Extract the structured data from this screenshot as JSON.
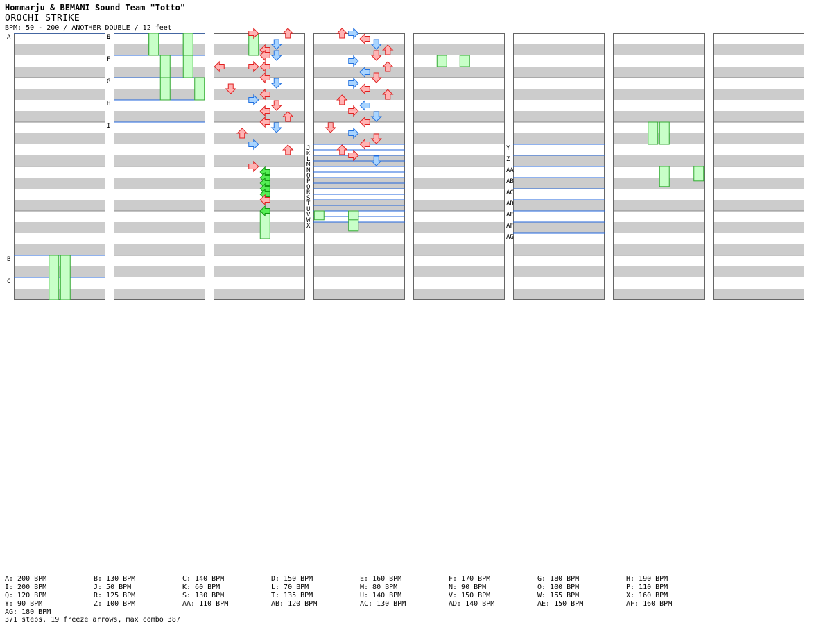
{
  "header": {
    "artist": "Hommarju & BEMANI Sound Team \"Totto\"",
    "title": "OROCHI STRIKE",
    "info": "BPM: 50 - 200 / ANOTHER DOUBLE / 12 feet"
  },
  "colors": {
    "red_fill": "#ffb3b3",
    "red_stroke": "#e02020",
    "blue_fill": "#a8d4ff",
    "blue_stroke": "#2070e0",
    "pink_fill": "#ffc4ff",
    "pink_stroke": "#c040c0",
    "green_fill": "#55ee55",
    "green_stroke": "#119911",
    "freeze_fill": "#c8ffc8",
    "freeze_stroke": "#33aa33",
    "stripe": "#cccccc",
    "barline": "#2266dd"
  },
  "chart_data": {
    "type": "stepchart",
    "columns": 8,
    "beats_per_column": 24,
    "lanes": 8,
    "bpm_markers": [
      {
        "label": "A",
        "beat": 0
      },
      {
        "label": "B",
        "beat": 20
      },
      {
        "label": "C",
        "beat": 22
      },
      {
        "label": "D",
        "beat": 24
      },
      {
        "label": "E",
        "beat": 24
      },
      {
        "label": "F",
        "beat": 26
      },
      {
        "label": "G",
        "beat": 28
      },
      {
        "label": "H",
        "beat": 30
      },
      {
        "label": "I",
        "beat": 32
      },
      {
        "label": "J",
        "beat": 82
      },
      {
        "label": "K",
        "beat": 82.5
      },
      {
        "label": "L",
        "beat": 83
      },
      {
        "label": "M",
        "beat": 83.5
      },
      {
        "label": "N",
        "beat": 84
      },
      {
        "label": "O",
        "beat": 84.5
      },
      {
        "label": "P",
        "beat": 85
      },
      {
        "label": "Q",
        "beat": 85.5
      },
      {
        "label": "R",
        "beat": 86
      },
      {
        "label": "S",
        "beat": 86.5
      },
      {
        "label": "T",
        "beat": 87
      },
      {
        "label": "U",
        "beat": 87.5
      },
      {
        "label": "V",
        "beat": 88
      },
      {
        "label": "W",
        "beat": 88.5
      },
      {
        "label": "X",
        "beat": 89
      },
      {
        "label": "Y",
        "beat": 130
      },
      {
        "label": "Z",
        "beat": 131
      },
      {
        "label": "AA",
        "beat": 132
      },
      {
        "label": "AB",
        "beat": 133
      },
      {
        "label": "AC",
        "beat": 134
      },
      {
        "label": "AD",
        "beat": 135
      },
      {
        "label": "AE",
        "beat": 136
      },
      {
        "label": "AF",
        "beat": 137
      },
      {
        "label": "AG",
        "beat": 138
      }
    ],
    "freezes": [
      {
        "lane": 3,
        "start": 20,
        "end": 24
      },
      {
        "lane": 4,
        "start": 20,
        "end": 24
      },
      {
        "lane": 3,
        "start": 24,
        "end": 26
      },
      {
        "lane": 6,
        "start": 24,
        "end": 26
      },
      {
        "lane": 3,
        "start": 24,
        "end": 26
      },
      {
        "lane": 6,
        "start": 24,
        "end": 26
      },
      {
        "lane": 4,
        "start": 26,
        "end": 28
      },
      {
        "lane": 6,
        "start": 26,
        "end": 28
      },
      {
        "lane": 4,
        "start": 28,
        "end": 30
      },
      {
        "lane": 7,
        "start": 28,
        "end": 30
      },
      {
        "lane": 3,
        "start": 48,
        "end": 50
      },
      {
        "lane": 4,
        "start": 64,
        "end": 66.5
      },
      {
        "lane": 3,
        "start": 88,
        "end": 89.8
      },
      {
        "lane": 2,
        "start": 98,
        "end": 99
      },
      {
        "lane": 4,
        "start": 98,
        "end": 99
      },
      {
        "lane": 0,
        "start": 88,
        "end": 88.8
      },
      {
        "lane": 3,
        "start": 88,
        "end": 88.8
      },
      {
        "lane": 3,
        "start": 152,
        "end": 154
      },
      {
        "lane": 4,
        "start": 152,
        "end": 154
      },
      {
        "lane": 4,
        "start": 156,
        "end": 157.8
      },
      {
        "lane": 7,
        "start": 156,
        "end": 157.3
      }
    ],
    "notes": [
      [
        51,
        3,
        "r"
      ],
      [
        51,
        0,
        "r"
      ],
      [
        48,
        3,
        "r"
      ],
      [
        48,
        6,
        "r"
      ],
      [
        49,
        5,
        "b"
      ],
      [
        49.5,
        4,
        "r"
      ],
      [
        50,
        4,
        "r"
      ],
      [
        50,
        5,
        "b"
      ],
      [
        51,
        4,
        "r"
      ],
      [
        52,
        4,
        "r"
      ],
      [
        52.5,
        5,
        "b"
      ],
      [
        53,
        1,
        "r"
      ],
      [
        53.5,
        4,
        "r"
      ],
      [
        54,
        3,
        "b"
      ],
      [
        54.5,
        5,
        "r"
      ],
      [
        55,
        4,
        "r"
      ],
      [
        55.5,
        6,
        "r"
      ],
      [
        56,
        4,
        "r"
      ],
      [
        56.5,
        5,
        "b"
      ],
      [
        57,
        2,
        "r"
      ],
      [
        58,
        3,
        "b"
      ],
      [
        58.5,
        6,
        "r"
      ],
      [
        60,
        3,
        "r"
      ],
      [
        60.5,
        4,
        "g"
      ],
      [
        61,
        4,
        "g"
      ],
      [
        61.5,
        4,
        "g"
      ],
      [
        62,
        4,
        "g"
      ],
      [
        62.5,
        4,
        "g"
      ],
      [
        63,
        4,
        "r"
      ],
      [
        64,
        4,
        "g"
      ],
      [
        72,
        2,
        "r"
      ],
      [
        72,
        3,
        "b"
      ],
      [
        72.5,
        4,
        "r"
      ],
      [
        73,
        5,
        "b"
      ],
      [
        73.5,
        6,
        "r"
      ],
      [
        74,
        5,
        "r"
      ],
      [
        74.5,
        3,
        "b"
      ],
      [
        75,
        6,
        "r"
      ],
      [
        75.5,
        4,
        "b"
      ],
      [
        76,
        5,
        "r"
      ],
      [
        76.5,
        3,
        "b"
      ],
      [
        77,
        4,
        "r"
      ],
      [
        77.5,
        6,
        "r"
      ],
      [
        78,
        2,
        "r"
      ],
      [
        78.5,
        4,
        "b"
      ],
      [
        79,
        3,
        "r"
      ],
      [
        79.5,
        5,
        "b"
      ],
      [
        80,
        4,
        "r"
      ],
      [
        80.5,
        1,
        "r"
      ],
      [
        81,
        3,
        "b"
      ],
      [
        81.5,
        5,
        "r"
      ],
      [
        82,
        4,
        "r"
      ],
      [
        82.5,
        2,
        "r"
      ],
      [
        83,
        3,
        "r"
      ],
      [
        83.5,
        5,
        "b"
      ]
    ]
  },
  "legend": [
    [
      "A: 200 BPM",
      "B: 130 BPM",
      "C: 140 BPM",
      "D: 150 BPM",
      "E: 160 BPM",
      "F: 170 BPM",
      "G: 180 BPM",
      "H: 190 BPM"
    ],
    [
      "I: 200 BPM",
      "J: 50 BPM",
      "K: 60 BPM",
      "L: 70 BPM",
      "M: 80 BPM",
      "N: 90 BPM",
      "O: 100 BPM",
      "P: 110 BPM"
    ],
    [
      "Q: 120 BPM",
      "R: 125 BPM",
      "S: 130 BPM",
      "T: 135 BPM",
      "U: 140 BPM",
      "V: 150 BPM",
      "W: 155 BPM",
      "X: 160 BPM"
    ],
    [
      "Y: 90 BPM",
      "Z: 100 BPM",
      "AA: 110 BPM",
      "AB: 120 BPM",
      "AC: 130 BPM",
      "AD: 140 BPM",
      "AE: 150 BPM",
      "AF: 160 BPM"
    ],
    [
      "AG: 180 BPM"
    ]
  ],
  "summary": "371 steps, 19 freeze arrows, max combo 387"
}
